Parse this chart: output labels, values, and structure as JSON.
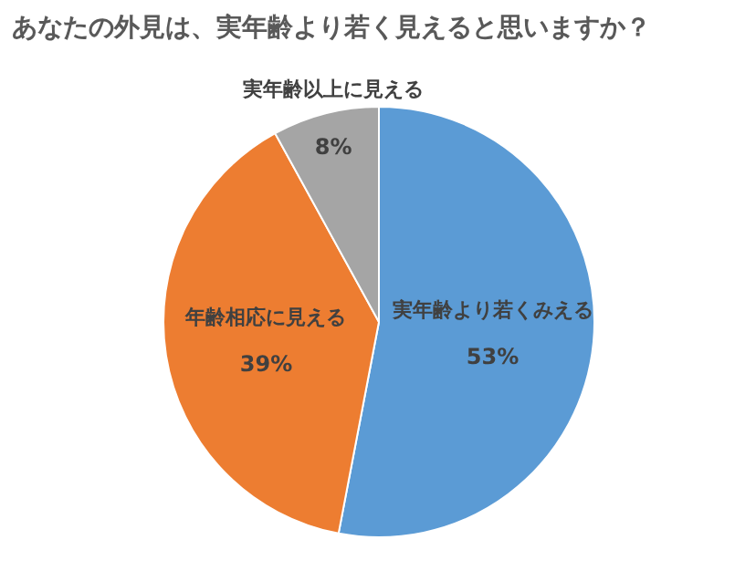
{
  "chart_data": {
    "type": "pie",
    "title": "あなたの外見は、実年齢より若く見えると思いますか？",
    "categories": [
      "実年齢より若くみえる",
      "年齢相応に見える",
      "実年齢以上に見える"
    ],
    "values": [
      53,
      39,
      8
    ],
    "colors": [
      "#5b9bd5",
      "#ed7d31",
      "#a5a5a5"
    ],
    "value_labels": [
      "53%",
      "39%",
      "8%"
    ]
  }
}
